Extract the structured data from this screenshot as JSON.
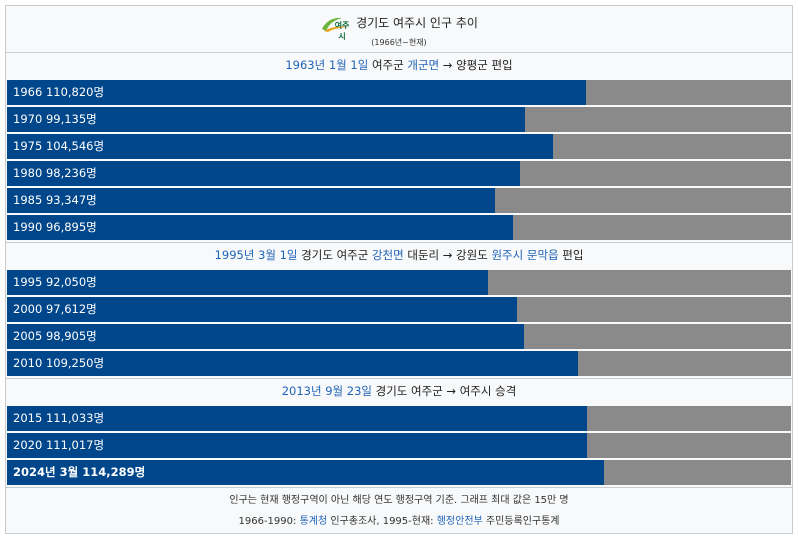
{
  "chart_data": {
    "type": "bar",
    "logo_text": "여주시",
    "title": "경기도 여주시 인구 추이",
    "subtitle": "(1966년~현재)",
    "xlim": [
      0,
      150000
    ],
    "bar_color": "#00468a",
    "track_color": "#8a8a8a",
    "sections": [
      {
        "heading": [
          {
            "text": "1963년 1월 1일",
            "link": true
          },
          {
            "text": " 여주군 ",
            "link": false
          },
          {
            "text": "개군면",
            "link": true
          },
          {
            "text": " → 양평군 편입",
            "link": false
          }
        ],
        "categories": [
          "1966",
          "1970",
          "1975",
          "1980",
          "1985",
          "1990"
        ],
        "values": [
          110820,
          99135,
          104546,
          98236,
          93347,
          96895
        ],
        "value_labels": [
          "110,820명",
          "99,135명",
          "104,546명",
          "98,236명",
          "93,347명",
          "96,895명"
        ]
      },
      {
        "heading": [
          {
            "text": "1995년 3월 1일",
            "link": true
          },
          {
            "text": " 경기도 여주군 ",
            "link": false
          },
          {
            "text": "강천면",
            "link": true
          },
          {
            "text": " 대둔리 → 강원도 ",
            "link": false
          },
          {
            "text": "원주시 문막읍",
            "link": true
          },
          {
            "text": " 편입",
            "link": false
          }
        ],
        "categories": [
          "1995",
          "2000",
          "2005",
          "2010"
        ],
        "values": [
          92050,
          97612,
          98905,
          109250
        ],
        "value_labels": [
          "92,050명",
          "97,612명",
          "98,905명",
          "109,250명"
        ]
      },
      {
        "heading": [
          {
            "text": "2013년 9월 23일",
            "link": true
          },
          {
            "text": " 경기도 여주군 → 여주시 승격",
            "link": false
          }
        ],
        "categories": [
          "2015",
          "2020",
          "2024년 3월"
        ],
        "values": [
          111033,
          111017,
          114289
        ],
        "value_labels": [
          "111,033명",
          "111,017명",
          "114,289명"
        ]
      }
    ],
    "notes": [
      [
        {
          "text": "인구는 현재 행정구역이 아닌 해당 연도 행정구역 기준. 그래프 최대 값은 15만 명",
          "link": false
        }
      ],
      [
        {
          "text": "1966-1990: ",
          "link": false
        },
        {
          "text": "통계청",
          "link": true
        },
        {
          "text": " 인구총조사, 1995-현재: ",
          "link": false
        },
        {
          "text": "행정안전부",
          "link": true
        },
        {
          "text": " 주민등록인구통계",
          "link": false
        }
      ]
    ]
  }
}
